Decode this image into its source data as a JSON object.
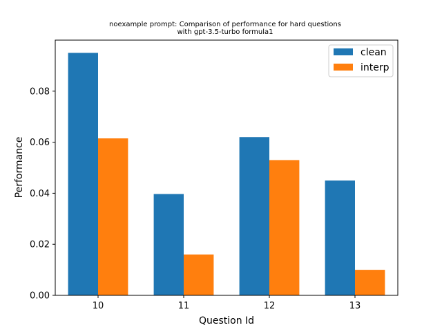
{
  "chart_data": {
    "type": "bar",
    "title_lines": [
      "noexample prompt: Comparison of performance for hard questions",
      "with gpt-3.5-turbo formula1"
    ],
    "xlabel": "Question Id",
    "ylabel": "Performance",
    "categories": [
      "10",
      "11",
      "12",
      "13"
    ],
    "series": [
      {
        "name": "clean",
        "color": "#1f77b4",
        "values": [
          0.095,
          0.0397,
          0.062,
          0.045
        ]
      },
      {
        "name": "interp",
        "color": "#ff7f0e",
        "values": [
          0.0615,
          0.016,
          0.053,
          0.01
        ]
      }
    ],
    "ylim": [
      0,
      0.1
    ],
    "yticks": [
      0.0,
      0.02,
      0.04,
      0.06,
      0.08
    ],
    "ytick_labels": [
      "0.00",
      "0.02",
      "0.04",
      "0.06",
      "0.08"
    ],
    "grid": false,
    "legend_position": "top-right"
  }
}
